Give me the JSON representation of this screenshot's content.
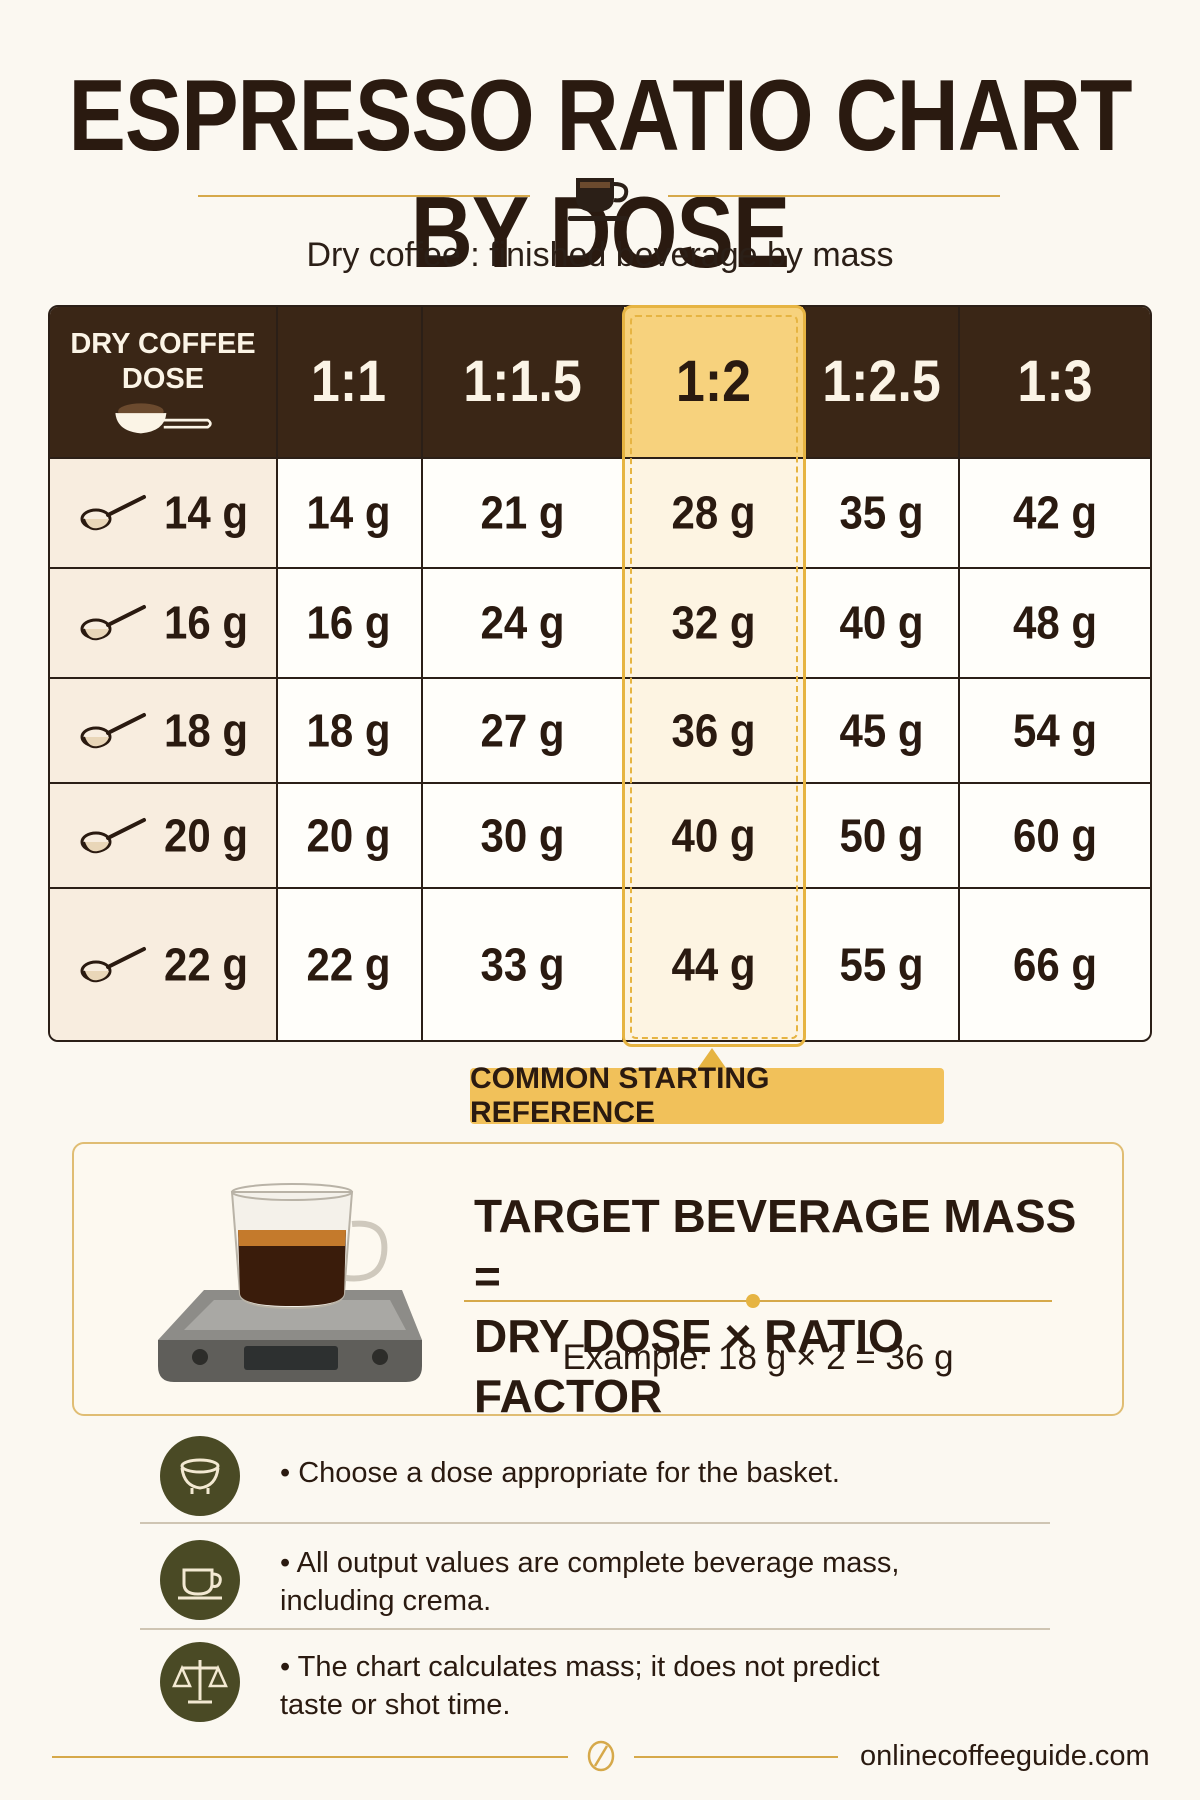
{
  "title": "ESPRESSO RATIO CHART BY DOSE",
  "subtitle": "Dry coffee : finished beverage by mass",
  "table": {
    "dose_header": "DRY COFFEE DOSE",
    "ratios": [
      "1:1",
      "1:1.5",
      "1:2",
      "1:2.5",
      "1:3"
    ],
    "highlighted_ratio": "1:2",
    "rows": [
      {
        "dose": "14 g",
        "values": [
          "14 g",
          "21 g",
          "28 g",
          "35 g",
          "42 g"
        ]
      },
      {
        "dose": "16 g",
        "values": [
          "16 g",
          "24 g",
          "32 g",
          "40 g",
          "48 g"
        ]
      },
      {
        "dose": "18 g",
        "values": [
          "18 g",
          "27 g",
          "36 g",
          "45 g",
          "54 g"
        ]
      },
      {
        "dose": "20 g",
        "values": [
          "20 g",
          "30 g",
          "40 g",
          "50 g",
          "60 g"
        ]
      },
      {
        "dose": "22 g",
        "values": [
          "22 g",
          "33 g",
          "44 g",
          "55 g",
          "66 g"
        ]
      }
    ]
  },
  "badge": "COMMON STARTING REFERENCE",
  "formula": {
    "line1": "TARGET BEVERAGE MASS =",
    "line2": "DRY DOSE × RATIO FACTOR",
    "example": "Example: 18 g × 2 = 36 g"
  },
  "tips": [
    {
      "icon": "portafilter-icon",
      "text": "• Choose a dose appropriate for the basket."
    },
    {
      "icon": "cup-icon",
      "text": "• All output values are complete beverage mass, including crema."
    },
    {
      "icon": "balance-scale-icon",
      "text": "• The chart calculates mass; it does not predict taste or shot time."
    }
  ],
  "footer": {
    "site": "onlinecoffeeguide.com"
  },
  "colors": {
    "header_bg": "#3a2616",
    "accent": "#e6b442",
    "highlight": "#f7d27d",
    "icon_circle": "#4a4a25"
  }
}
